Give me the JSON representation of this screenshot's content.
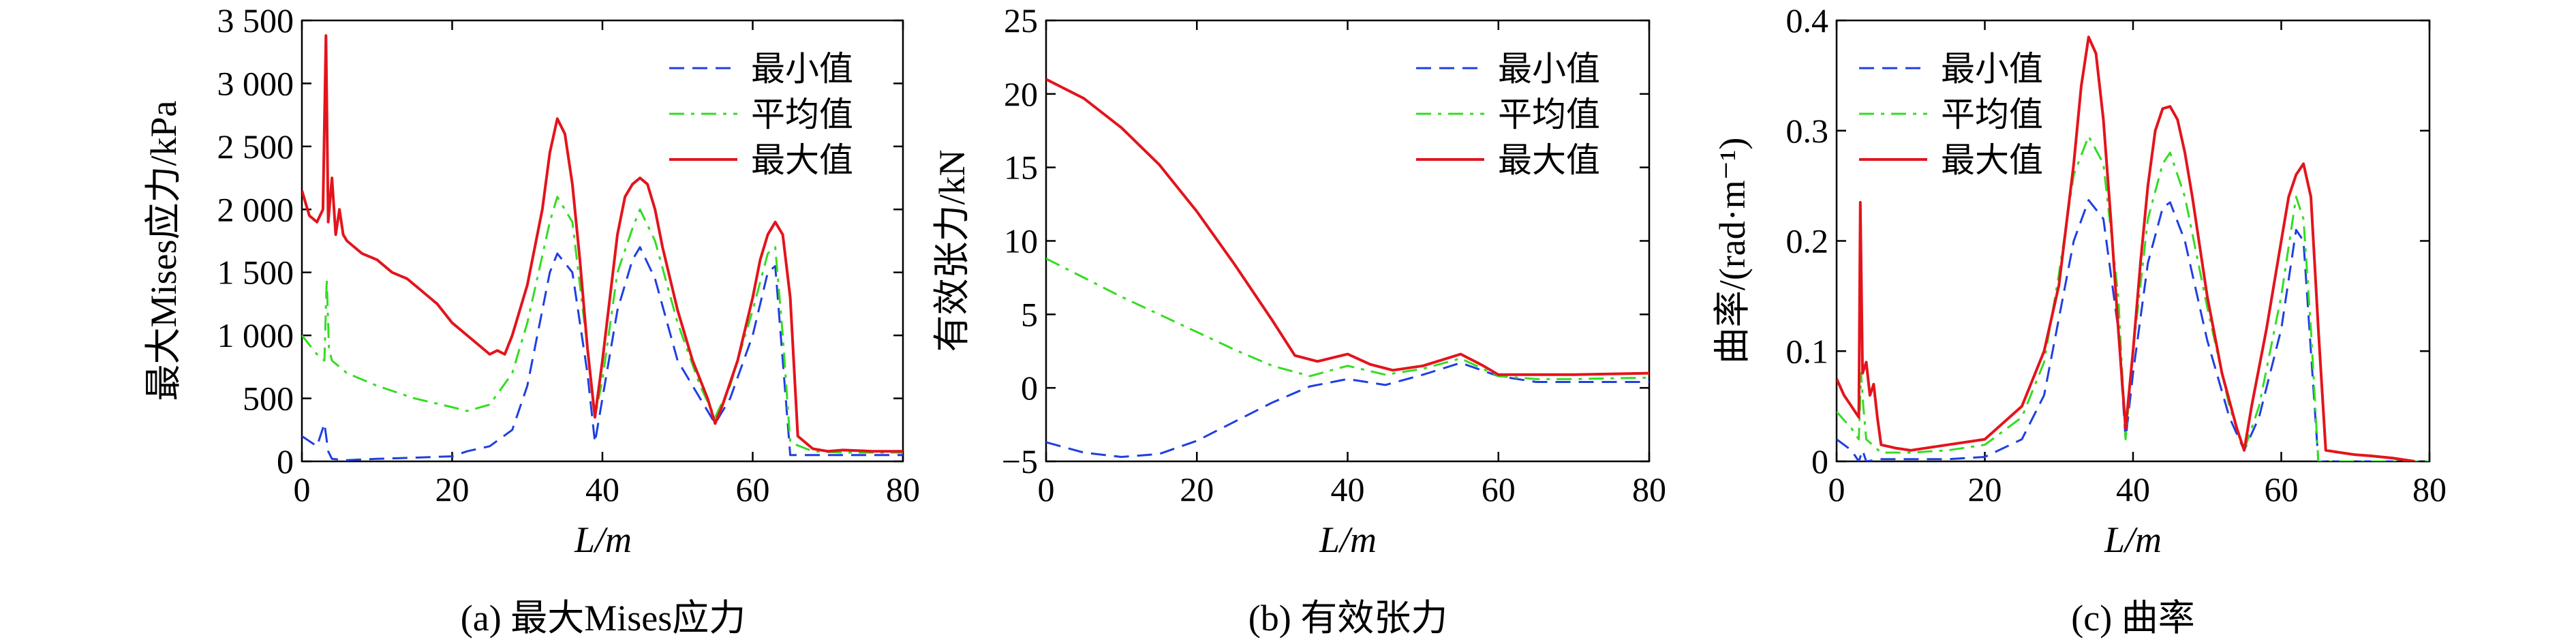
{
  "chart_data": [
    {
      "type": "line",
      "caption": "(a) 最大Mises应力",
      "xlabel": "L/m",
      "ylabel": "最大Mises应力/kPa",
      "xlim": [
        0,
        80
      ],
      "ylim": [
        0,
        3500
      ],
      "xticks": [
        "0",
        "20",
        "40",
        "60",
        "80"
      ],
      "yticks": [
        "0",
        "500",
        "1 000",
        "1 500",
        "2 000",
        "2 500",
        "3 000",
        "3 500"
      ],
      "legend": [
        "最小值",
        "平均值",
        "最大值"
      ],
      "series": [
        {
          "name": "最小值",
          "color": "#1f3fe0",
          "dash": "dashed",
          "x": [
            0,
            2,
            3,
            3.5,
            4,
            6,
            10,
            15,
            20,
            22,
            25,
            28,
            30,
            33,
            34,
            36,
            38,
            39,
            40,
            42,
            44,
            45,
            47,
            50,
            53,
            55,
            57,
            60,
            62,
            63,
            64,
            65,
            68,
            72,
            80
          ],
          "y": [
            200,
            120,
            300,
            80,
            20,
            10,
            20,
            30,
            40,
            80,
            120,
            250,
            600,
            1500,
            1650,
            1500,
            700,
            150,
            500,
            1200,
            1600,
            1700,
            1450,
            800,
            500,
            300,
            500,
            1000,
            1500,
            1550,
            800,
            50,
            50,
            50,
            50
          ]
        },
        {
          "name": "平均值",
          "color": "#33dd22",
          "dash": "dashdot",
          "x": [
            0,
            2,
            3,
            3.3,
            3.6,
            4,
            6,
            10,
            15,
            20,
            22,
            25,
            28,
            30,
            33,
            34,
            36,
            38,
            39,
            40,
            42,
            44,
            45,
            47,
            50,
            53,
            55,
            57,
            60,
            62,
            63,
            64,
            65,
            68,
            72,
            80
          ],
          "y": [
            1000,
            850,
            800,
            1450,
            900,
            800,
            700,
            600,
            500,
            430,
            400,
            450,
            700,
            1100,
            1900,
            2100,
            1900,
            900,
            350,
            650,
            1500,
            1850,
            2000,
            1750,
            1100,
            600,
            350,
            600,
            1200,
            1650,
            1700,
            1000,
            150,
            80,
            70,
            70
          ]
        },
        {
          "name": "最大值",
          "color": "#e3141c",
          "dash": "solid",
          "x": [
            0,
            1,
            2,
            2.8,
            3.2,
            3.5,
            4,
            4.5,
            5,
            5.5,
            6,
            8,
            10,
            12,
            14,
            16,
            18,
            20,
            22,
            24,
            25,
            26,
            27,
            28,
            30,
            32,
            33,
            34,
            35,
            36,
            37,
            38,
            39,
            40,
            41,
            42,
            43,
            44,
            45,
            46,
            47,
            48,
            50,
            52,
            54,
            55,
            56,
            58,
            60,
            61,
            62,
            63,
            64,
            65,
            66,
            68,
            70,
            72,
            76,
            80
          ],
          "y": [
            2150,
            1950,
            1900,
            2000,
            3380,
            1900,
            2250,
            1800,
            2000,
            1800,
            1750,
            1650,
            1600,
            1500,
            1450,
            1350,
            1250,
            1100,
            1000,
            900,
            850,
            880,
            850,
            1000,
            1400,
            2000,
            2450,
            2720,
            2600,
            2200,
            1600,
            900,
            350,
            800,
            1300,
            1800,
            2100,
            2200,
            2250,
            2200,
            2000,
            1700,
            1200,
            800,
            500,
            300,
            450,
            800,
            1300,
            1600,
            1800,
            1900,
            1800,
            1300,
            200,
            100,
            80,
            90,
            80,
            80
          ]
        }
      ]
    },
    {
      "type": "line",
      "caption": "(b) 有效张力",
      "xlabel": "L/m",
      "ylabel": "有效张力/kN",
      "xlim": [
        0,
        80
      ],
      "ylim": [
        -5,
        25
      ],
      "xticks": [
        "0",
        "20",
        "40",
        "60",
        "80"
      ],
      "yticks": [
        "−5",
        "0",
        "5",
        "10",
        "15",
        "20",
        "25"
      ],
      "legend": [
        "最小值",
        "平均值",
        "最大值"
      ],
      "series": [
        {
          "name": "最小值",
          "color": "#1f3fe0",
          "dash": "dashed",
          "x": [
            0,
            5,
            10,
            15,
            20,
            25,
            30,
            35,
            40,
            45,
            50,
            55,
            60,
            65,
            70,
            80
          ],
          "y": [
            -3.7,
            -4.4,
            -4.7,
            -4.5,
            -3.6,
            -2.3,
            -1.0,
            0.1,
            0.6,
            0.2,
            0.9,
            1.7,
            0.8,
            0.4,
            0.4,
            0.4
          ]
        },
        {
          "name": "平均值",
          "color": "#33dd22",
          "dash": "dashdot",
          "x": [
            0,
            5,
            10,
            15,
            20,
            25,
            30,
            35,
            40,
            45,
            50,
            55,
            60,
            65,
            70,
            80
          ],
          "y": [
            8.8,
            7.5,
            6.2,
            5.0,
            3.8,
            2.6,
            1.5,
            0.8,
            1.5,
            0.9,
            1.3,
            2.0,
            0.8,
            0.6,
            0.6,
            0.7
          ]
        },
        {
          "name": "最大值",
          "color": "#e3141c",
          "dash": "solid",
          "x": [
            0,
            5,
            10,
            15,
            20,
            25,
            30,
            33,
            36,
            40,
            43,
            46,
            50,
            55,
            58,
            60,
            65,
            70,
            80
          ],
          "y": [
            21,
            19.7,
            17.7,
            15.2,
            12.0,
            8.4,
            4.6,
            2.2,
            1.8,
            2.3,
            1.6,
            1.2,
            1.5,
            2.3,
            1.5,
            0.9,
            0.9,
            0.9,
            1.0
          ]
        }
      ]
    },
    {
      "type": "line",
      "caption": "(c) 曲率",
      "xlabel": "L/m",
      "ylabel": "曲率/(rad·m⁻¹)",
      "xlim": [
        0,
        80
      ],
      "ylim": [
        0,
        0.4
      ],
      "xticks": [
        "0",
        "20",
        "40",
        "60",
        "80"
      ],
      "yticks": [
        "0",
        "0.1",
        "0.2",
        "0.3",
        "0.4"
      ],
      "legend": [
        "最小值",
        "平均值",
        "最大值"
      ],
      "series": [
        {
          "name": "最小值",
          "color": "#1f3fe0",
          "dash": "dashed",
          "x": [
            0,
            2,
            3,
            3.5,
            4,
            6,
            10,
            15,
            20,
            25,
            28,
            30,
            32,
            34,
            36,
            38,
            39,
            40,
            42,
            44,
            45,
            47,
            50,
            53,
            55,
            57,
            60,
            62,
            63,
            64,
            65,
            68,
            80
          ],
          "y": [
            0.02,
            0.01,
            0.0,
            0.01,
            0.0,
            0.002,
            0.002,
            0.002,
            0.004,
            0.02,
            0.06,
            0.13,
            0.2,
            0.237,
            0.22,
            0.12,
            0.02,
            0.08,
            0.18,
            0.23,
            0.235,
            0.2,
            0.11,
            0.04,
            0.01,
            0.04,
            0.12,
            0.21,
            0.2,
            0.1,
            0.0,
            0.0,
            0.0
          ]
        },
        {
          "name": "平均值",
          "color": "#33dd22",
          "dash": "dashdot",
          "x": [
            0,
            2,
            3,
            3.3,
            3.6,
            4,
            6,
            10,
            15,
            20,
            25,
            28,
            30,
            32,
            34,
            36,
            38,
            39,
            40,
            42,
            44,
            45,
            47,
            50,
            53,
            55,
            57,
            60,
            62,
            63,
            64,
            65,
            68,
            80
          ],
          "y": [
            0.045,
            0.03,
            0.02,
            0.08,
            0.05,
            0.02,
            0.008,
            0.008,
            0.01,
            0.015,
            0.04,
            0.09,
            0.17,
            0.26,
            0.295,
            0.27,
            0.15,
            0.02,
            0.1,
            0.22,
            0.27,
            0.28,
            0.24,
            0.14,
            0.05,
            0.01,
            0.05,
            0.15,
            0.24,
            0.22,
            0.12,
            0.0,
            0.0,
            0.0
          ]
        },
        {
          "name": "最大值",
          "color": "#e3141c",
          "dash": "solid",
          "x": [
            0,
            1,
            2,
            3,
            3.2,
            3.5,
            4,
            4.5,
            5,
            5.5,
            6,
            8,
            10,
            15,
            20,
            25,
            28,
            30,
            32,
            33,
            34,
            35,
            36,
            37,
            38,
            39,
            40,
            41,
            42,
            43,
            44,
            45,
            46,
            47,
            48,
            50,
            52,
            54,
            55,
            56,
            58,
            60,
            61,
            62,
            63,
            64,
            65,
            66,
            68,
            70,
            72,
            75,
            78
          ],
          "y": [
            0.075,
            0.06,
            0.05,
            0.04,
            0.235,
            0.08,
            0.09,
            0.06,
            0.07,
            0.04,
            0.015,
            0.012,
            0.01,
            0.015,
            0.02,
            0.05,
            0.1,
            0.16,
            0.27,
            0.34,
            0.385,
            0.37,
            0.31,
            0.22,
            0.12,
            0.03,
            0.1,
            0.18,
            0.25,
            0.3,
            0.32,
            0.322,
            0.31,
            0.28,
            0.24,
            0.15,
            0.08,
            0.03,
            0.01,
            0.05,
            0.12,
            0.2,
            0.24,
            0.26,
            0.27,
            0.24,
            0.12,
            0.01,
            0.008,
            0.006,
            0.005,
            0.003,
            0.0
          ]
        }
      ]
    }
  ]
}
